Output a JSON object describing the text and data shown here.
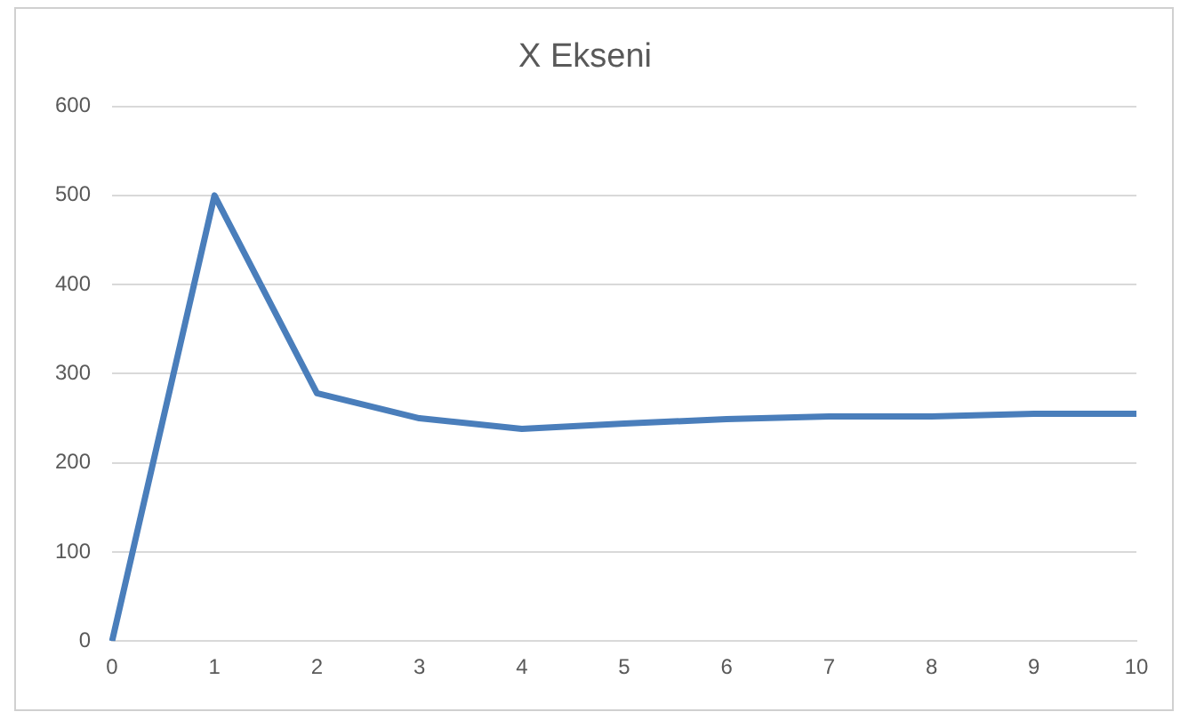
{
  "chart_data": {
    "type": "line",
    "title": "X Ekseni",
    "categories": [
      "0",
      "1",
      "2",
      "3",
      "4",
      "5",
      "6",
      "7",
      "8",
      "9",
      "10"
    ],
    "series": [
      {
        "color": "#4a7ebb",
        "values": [
          0,
          500,
          278,
          250,
          238,
          244,
          249,
          252,
          252,
          255,
          255
        ]
      }
    ],
    "ylim": [
      0,
      600
    ],
    "yticks": [
      0,
      100,
      200,
      300,
      400,
      500,
      600
    ],
    "grid": "y",
    "legend": false,
    "marker": "none",
    "line_style": "solid"
  }
}
